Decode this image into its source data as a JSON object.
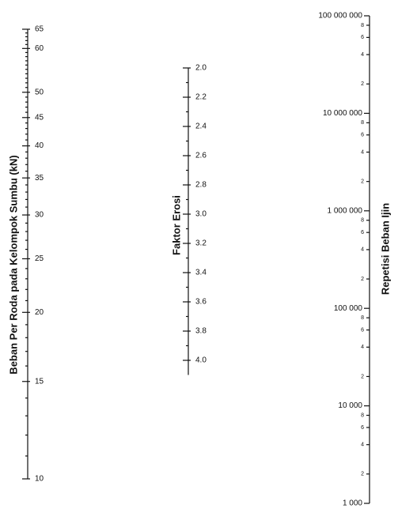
{
  "scales": [
    {
      "label": "Beban Per Roda pada Kelompok Sumbu (kN)",
      "scale": "log",
      "lim": [
        10,
        65
      ],
      "ticks": [
        10,
        15,
        20,
        25,
        30,
        35,
        40,
        45,
        50,
        60,
        65
      ],
      "minor_ticks": [
        11,
        12,
        13,
        14,
        16,
        17,
        18,
        19,
        21,
        22,
        23,
        24,
        26,
        27,
        28,
        29,
        31,
        32,
        33,
        34,
        36,
        37,
        38,
        39,
        41,
        42,
        43,
        44,
        46,
        47,
        48,
        49,
        51,
        52,
        53,
        54,
        55,
        56,
        57,
        58,
        59,
        61,
        62,
        63,
        64
      ]
    },
    {
      "label": "Faktor Erosi",
      "scale": "linear",
      "lim": [
        2,
        4.1
      ],
      "ticks": [
        {
          "value": 2,
          "label": "2.0"
        },
        2.2,
        2.4,
        2.6,
        2.8,
        {
          "value": 3,
          "label": "3.0"
        },
        3.2,
        3.4,
        3.6,
        3.8,
        {
          "value": 4,
          "label": "4.0"
        }
      ],
      "minor_ticks": [
        2.1,
        2.3,
        2.5,
        2.7,
        2.9,
        3.1,
        3.3,
        3.5,
        3.7,
        3.9
      ]
    },
    {
      "label": "Repetisi Beban Ijin",
      "scale": "log",
      "lim": [
        1000,
        100000000
      ],
      "ticks": [
        {
          "value": 1000,
          "label": "1 000"
        },
        {
          "value": 2000,
          "label": "2"
        },
        {
          "value": 4000,
          "label": "4"
        },
        {
          "value": 6000,
          "label": "6"
        },
        {
          "value": 8000,
          "label": "8"
        },
        {
          "value": 10000,
          "label": "10 000"
        },
        {
          "value": 20000,
          "label": "2"
        },
        {
          "value": 40000,
          "label": "4"
        },
        {
          "value": 60000,
          "label": "6"
        },
        {
          "value": 80000,
          "label": "8"
        },
        {
          "value": 100000,
          "label": "100 000"
        },
        {
          "value": 200000,
          "label": "2"
        },
        {
          "value": 400000,
          "label": "4"
        },
        {
          "value": 600000,
          "label": "6"
        },
        {
          "value": 800000,
          "label": "8"
        },
        {
          "value": 1000000,
          "label": "1 000 000"
        },
        {
          "value": 2000000,
          "label": "2"
        },
        {
          "value": 4000000,
          "label": "4"
        },
        {
          "value": 6000000,
          "label": "6"
        },
        {
          "value": 8000000,
          "label": "8"
        },
        {
          "value": 10000000,
          "label": "10 000 000"
        },
        {
          "value": 20000000,
          "label": "2"
        },
        {
          "value": 40000000,
          "label": "4"
        },
        {
          "value": 60000000,
          "label": "6"
        },
        {
          "value": 80000000,
          "label": "8"
        },
        {
          "value": 100000000,
          "label": "100 000 000"
        }
      ],
      "minor_ticks": []
    }
  ]
}
